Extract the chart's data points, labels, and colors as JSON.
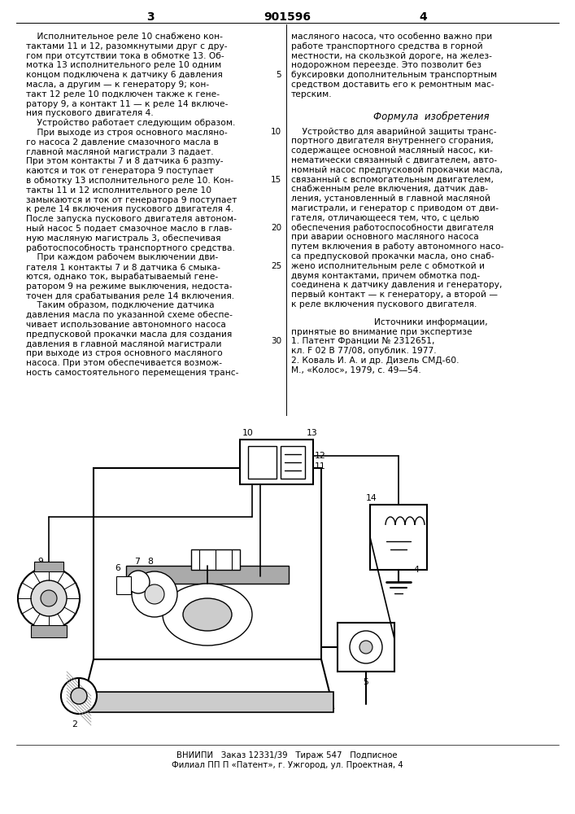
{
  "page_number_left": "3",
  "page_number_right": "4",
  "patent_number": "901596",
  "background_color": "#ffffff",
  "text_color": "#000000",
  "footer_text": "ВНИИПИ   Заказ 12331/39   Тираж 547   Подписное",
  "footer_text2": "Филиал ПП П «Патент», г. Ужгород, ул. Проектная, 4"
}
